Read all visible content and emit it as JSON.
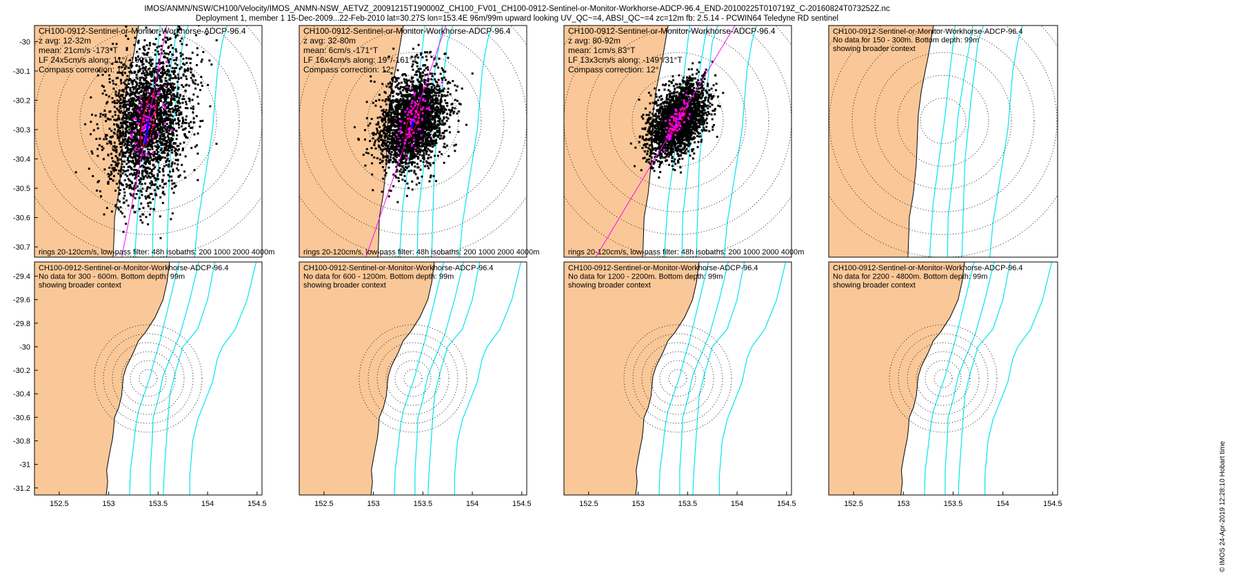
{
  "header": {
    "line1": "IMOS/ANMN/NSW/CH100/Velocity/IMOS_ANMN-NSW_AETVZ_20091215T190000Z_CH100_FV01_CH100-0912-Sentinel-or-Monitor-Workhorse-ADCP-96.4_END-20100225T010719Z_C-20160824T073252Z.nc",
    "line2": "Deployment 1, member 1 15-Dec-2009...22-Feb-2010 lat=30.27S lon=153.4E 96m/99m upward looking UV_QC~=4, ABSI_QC~=4 zc=12m fb: 2.5.14 - PCWIN64 Teledyne RD sentinel"
  },
  "footer": "© IMOS 24-Apr-2019 12:28:10 Hobart time",
  "colors": {
    "land": "#fac898",
    "isobath": "#00e5ee",
    "scatter": "#000000",
    "lowpass": "#ff00ff",
    "mean": "#0000ff",
    "axis_line": "#ff00ff",
    "ellipse": "#ff0000"
  },
  "chart_data": [
    {
      "type": "scatter",
      "panel": "top-1",
      "title": "CH100-0912-Sentinel-or-Monitor-Workhorse-ADCP-96.4",
      "text_lines": [
        "z avg: 12-32m",
        "mean: 21cm/s -173°T",
        "LF 24x5cm/s along: 11°/-169°T",
        "Compass correction: 12°"
      ],
      "bottom_note": "rings 20-120cm/s, low-pass filter: 48h isobaths: 200 1000 2000 4000m",
      "xlim": [
        152.25,
        154.55
      ],
      "ylim": [
        -30.735,
        -29.945
      ],
      "xticks": [],
      "yticks": [
        "-30",
        "-30.1",
        "-30.2",
        "-30.3",
        "-30.4",
        "-30.5",
        "-30.6",
        "-30.7"
      ],
      "center": [
        153.4,
        -30.27
      ],
      "mean_speed_cms": 21,
      "mean_dir_degT": -173,
      "major_axis_cms": 24,
      "minor_axis_cms": 5,
      "along_dir_degT": 11,
      "rings_cms": [
        20,
        40,
        60,
        80,
        100,
        120
      ],
      "isobaths_m": [
        200,
        1000,
        2000,
        4000
      ]
    },
    {
      "type": "scatter",
      "panel": "top-2",
      "title": "CH100-0912-Sentinel-or-Monitor-Workhorse-ADCP-96.4",
      "text_lines": [
        "z avg: 32-80m",
        "mean: 6cm/s -171°T",
        "LF 16x4cm/s along: 19°/-161°T",
        "Compass correction: 12°"
      ],
      "bottom_note": "rings 20-120cm/s, low-pass filter: 48h isobaths: 200 1000 2000 4000m",
      "xlim": [
        152.25,
        154.55
      ],
      "ylim": [
        -30.735,
        -29.945
      ],
      "xticks": [],
      "yticks": [],
      "center": [
        153.4,
        -30.27
      ],
      "mean_speed_cms": 6,
      "mean_dir_degT": -171,
      "major_axis_cms": 16,
      "minor_axis_cms": 4,
      "along_dir_degT": 19,
      "rings_cms": [
        20,
        40,
        60,
        80,
        100,
        120
      ],
      "isobaths_m": [
        200,
        1000,
        2000,
        4000
      ]
    },
    {
      "type": "scatter",
      "panel": "top-3",
      "title": "CH100-0912-Sentinel-or-Monitor-Workhorse-ADCP-96.4",
      "text_lines": [
        "z avg: 80-92m",
        "mean: 1cm/s 83°T",
        "LF 13x3cm/s along: -149°/31°T",
        "Compass correction: 12°"
      ],
      "bottom_note": "rings 20-120cm/s, low-pass filter: 48h isobaths: 200 1000 2000 4000m",
      "xlim": [
        152.25,
        154.55
      ],
      "ylim": [
        -30.735,
        -29.945
      ],
      "xticks": [],
      "yticks": [],
      "center": [
        153.4,
        -30.27
      ],
      "mean_speed_cms": 1,
      "mean_dir_degT": 83,
      "major_axis_cms": 13,
      "minor_axis_cms": 3,
      "along_dir_degT": 31,
      "rings_cms": [
        20,
        40,
        60,
        80,
        100,
        120
      ],
      "isobaths_m": [
        200,
        1000,
        2000,
        4000
      ]
    },
    {
      "type": "scatter",
      "panel": "top-4",
      "title": "CH100-0912-Sentinel-or-Monitor-Workhorse-ADCP-96.4",
      "text_lines": [
        "No data for 150 - 300m. Bottom depth: 99m",
        "showing broader context"
      ],
      "xlim": [
        152.25,
        154.55
      ],
      "ylim": [
        -30.735,
        -29.945
      ],
      "xticks": [],
      "yticks": [],
      "center": [
        153.4,
        -30.27
      ],
      "rings_cms": [
        20,
        40,
        60,
        80,
        100,
        120
      ]
    },
    {
      "type": "scatter",
      "panel": "bottom-1",
      "title": "CH100-0912-Sentinel-or-Monitor-Workhorse-ADCP-96.4",
      "text_lines": [
        "No data for 300 - 600m. Bottom depth: 99m",
        "showing broader context"
      ],
      "xlim": [
        152.25,
        154.55
      ],
      "ylim": [
        -31.26,
        -29.28
      ],
      "xticks": [
        "152.5",
        "153",
        "153.5",
        "154",
        "154.5"
      ],
      "yticks": [
        "-29.4",
        "-29.6",
        "-29.8",
        "-30",
        "-30.2",
        "-30.4",
        "-30.6",
        "-30.8",
        "-31",
        "-31.2"
      ],
      "center": [
        153.4,
        -30.27
      ],
      "rings_cms": [
        20,
        40,
        60,
        80,
        100,
        120
      ]
    },
    {
      "type": "scatter",
      "panel": "bottom-2",
      "title": "CH100-0912-Sentinel-or-Monitor-Workhorse-ADCP-96.4",
      "text_lines": [
        "No data for 600 - 1200m. Bottom depth: 99m",
        "showing broader context"
      ],
      "xlim": [
        152.25,
        154.55
      ],
      "ylim": [
        -31.26,
        -29.28
      ],
      "xticks": [
        "152.5",
        "153",
        "153.5",
        "154",
        "154.5"
      ],
      "yticks": [],
      "center": [
        153.4,
        -30.27
      ],
      "rings_cms": [
        20,
        40,
        60,
        80,
        100,
        120
      ]
    },
    {
      "type": "scatter",
      "panel": "bottom-3",
      "title": "CH100-0912-Sentinel-or-Monitor-Workhorse-ADCP-96.4",
      "text_lines": [
        "No data for 1200 - 2200m. Bottom depth: 99m",
        "showing broader context"
      ],
      "xlim": [
        152.25,
        154.55
      ],
      "ylim": [
        -31.26,
        -29.28
      ],
      "xticks": [
        "152.5",
        "153",
        "153.5",
        "154",
        "154.5"
      ],
      "yticks": [],
      "center": [
        153.4,
        -30.27
      ],
      "rings_cms": [
        20,
        40,
        60,
        80,
        100,
        120
      ]
    },
    {
      "type": "scatter",
      "panel": "bottom-4",
      "title": "CH100-0912-Sentinel-or-Monitor-Workhorse-ADCP-96.4",
      "text_lines": [
        "No data for 2200 - 4800m. Bottom depth: 99m",
        "showing broader context"
      ],
      "xlim": [
        152.25,
        154.55
      ],
      "ylim": [
        -31.26,
        -29.28
      ],
      "xticks": [
        "152.5",
        "153",
        "153.5",
        "154",
        "154.5"
      ],
      "yticks": [],
      "center": [
        153.4,
        -30.27
      ],
      "rings_cms": [
        20,
        40,
        60,
        80,
        100,
        120
      ]
    }
  ]
}
